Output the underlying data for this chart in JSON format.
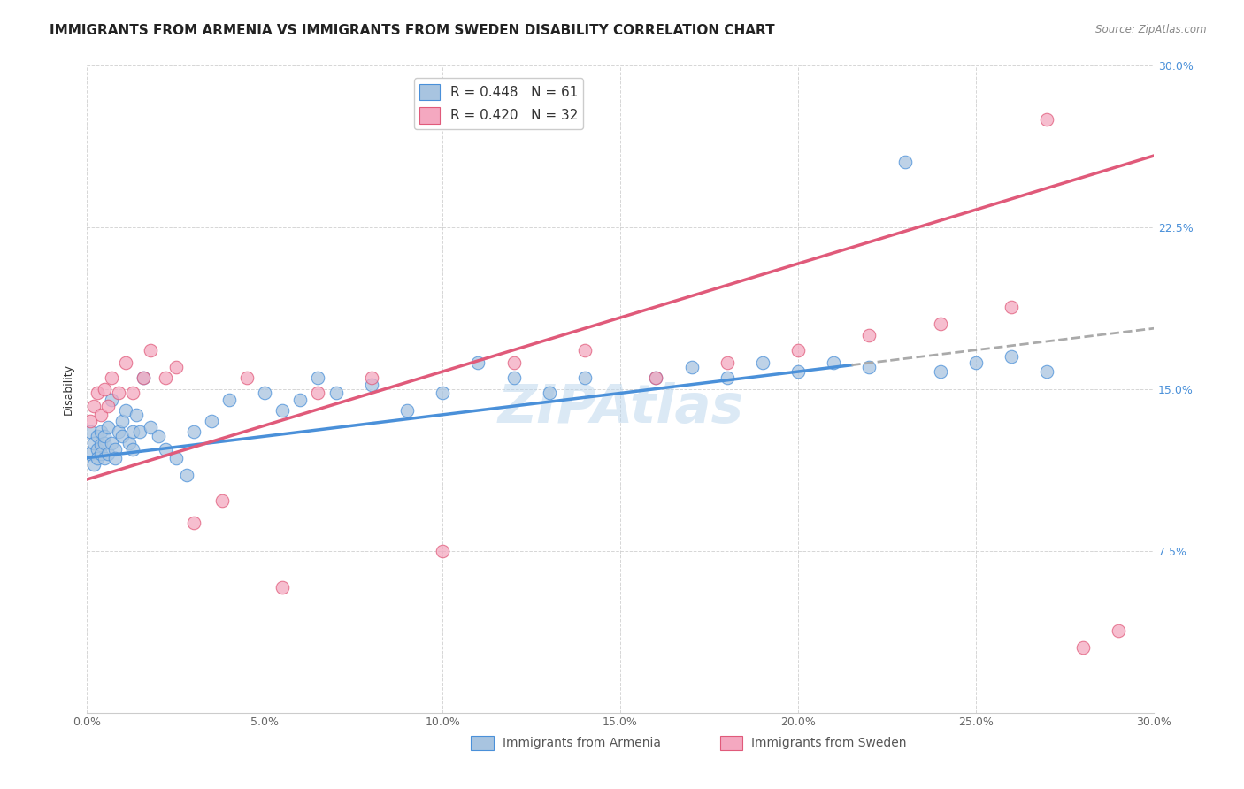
{
  "title": "IMMIGRANTS FROM ARMENIA VS IMMIGRANTS FROM SWEDEN DISABILITY CORRELATION CHART",
  "source": "Source: ZipAtlas.com",
  "ylabel": "Disability",
  "legend_label1": "Immigrants from Armenia",
  "legend_label2": "Immigrants from Sweden",
  "R1": 0.448,
  "N1": 61,
  "R2": 0.42,
  "N2": 32,
  "color1": "#a8c4e0",
  "color2": "#f4a8c0",
  "trendline1_color": "#4a90d9",
  "trendline2_color": "#e05a7a",
  "xmin": 0.0,
  "xmax": 0.3,
  "ymin": 0.0,
  "ymax": 0.3,
  "xticks": [
    0.0,
    0.05,
    0.1,
    0.15,
    0.2,
    0.25,
    0.3
  ],
  "yticks": [
    0.0,
    0.075,
    0.15,
    0.225,
    0.3
  ],
  "xtick_labels": [
    "0.0%",
    "5.0%",
    "10.0%",
    "15.0%",
    "20.0%",
    "25.0%",
    "30.0%"
  ],
  "ytick_labels_right": [
    "",
    "7.5%",
    "15.0%",
    "22.5%",
    "30.0%"
  ],
  "background_color": "#ffffff",
  "grid_color": "#cccccc",
  "scatter1_x": [
    0.001,
    0.001,
    0.002,
    0.002,
    0.003,
    0.003,
    0.003,
    0.004,
    0.004,
    0.004,
    0.005,
    0.005,
    0.005,
    0.006,
    0.006,
    0.007,
    0.007,
    0.008,
    0.008,
    0.009,
    0.01,
    0.01,
    0.011,
    0.012,
    0.013,
    0.013,
    0.014,
    0.015,
    0.016,
    0.018,
    0.02,
    0.022,
    0.025,
    0.028,
    0.03,
    0.035,
    0.04,
    0.05,
    0.055,
    0.06,
    0.065,
    0.07,
    0.08,
    0.09,
    0.1,
    0.11,
    0.12,
    0.13,
    0.14,
    0.16,
    0.17,
    0.18,
    0.19,
    0.2,
    0.21,
    0.22,
    0.23,
    0.24,
    0.25,
    0.26,
    0.27
  ],
  "scatter1_y": [
    0.13,
    0.12,
    0.125,
    0.115,
    0.128,
    0.122,
    0.118,
    0.13,
    0.124,
    0.12,
    0.125,
    0.118,
    0.128,
    0.132,
    0.12,
    0.125,
    0.145,
    0.122,
    0.118,
    0.13,
    0.135,
    0.128,
    0.14,
    0.125,
    0.13,
    0.122,
    0.138,
    0.13,
    0.155,
    0.132,
    0.128,
    0.122,
    0.118,
    0.11,
    0.13,
    0.135,
    0.145,
    0.148,
    0.14,
    0.145,
    0.155,
    0.148,
    0.152,
    0.14,
    0.148,
    0.162,
    0.155,
    0.148,
    0.155,
    0.155,
    0.16,
    0.155,
    0.162,
    0.158,
    0.162,
    0.16,
    0.255,
    0.158,
    0.162,
    0.165,
    0.158
  ],
  "scatter2_x": [
    0.001,
    0.002,
    0.003,
    0.004,
    0.005,
    0.006,
    0.007,
    0.009,
    0.011,
    0.013,
    0.016,
    0.018,
    0.022,
    0.025,
    0.03,
    0.038,
    0.045,
    0.055,
    0.065,
    0.08,
    0.1,
    0.12,
    0.14,
    0.16,
    0.18,
    0.2,
    0.22,
    0.24,
    0.26,
    0.27,
    0.28,
    0.29
  ],
  "scatter2_y": [
    0.135,
    0.142,
    0.148,
    0.138,
    0.15,
    0.142,
    0.155,
    0.148,
    0.162,
    0.148,
    0.155,
    0.168,
    0.155,
    0.16,
    0.088,
    0.098,
    0.155,
    0.058,
    0.148,
    0.155,
    0.075,
    0.162,
    0.168,
    0.155,
    0.162,
    0.168,
    0.175,
    0.18,
    0.188,
    0.275,
    0.03,
    0.038
  ],
  "trendline1_x_start": 0.0,
  "trendline1_x_end": 0.3,
  "trendline1_y_start": 0.118,
  "trendline1_y_end": 0.178,
  "trendline1_solid_end": 0.215,
  "trendline2_x_start": 0.0,
  "trendline2_x_end": 0.3,
  "trendline2_y_start": 0.108,
  "trendline2_y_end": 0.258,
  "watermark_text": "ZIPAtlas",
  "title_fontsize": 11,
  "axis_fontsize": 9,
  "legend_fontsize": 11
}
